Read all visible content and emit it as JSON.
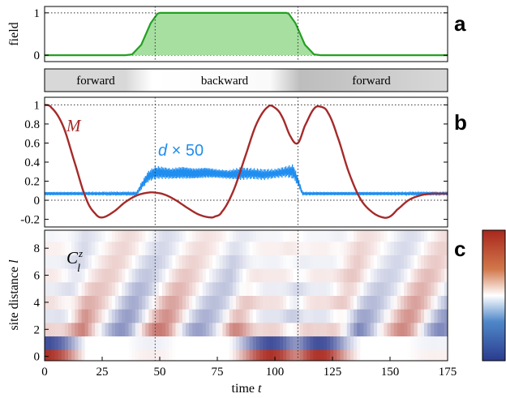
{
  "chart_data": [
    {
      "panel": "a",
      "type": "area",
      "ylabel": "field",
      "xlim": [
        0,
        175
      ],
      "ylim": [
        -0.15,
        1.15
      ],
      "yticks": [
        0,
        1
      ],
      "hlines": [
        0,
        1
      ],
      "series": [
        {
          "color": "#22a022",
          "fill": "#a6dfa0",
          "x": [
            0,
            35,
            38,
            42,
            46,
            49,
            50,
            105,
            106,
            109,
            113,
            117,
            120,
            175
          ],
          "values": [
            0,
            0,
            0.02,
            0.25,
            0.75,
            0.98,
            1,
            1,
            0.98,
            0.75,
            0.25,
            0.02,
            0,
            0
          ]
        }
      ]
    },
    {
      "panel": "band",
      "type": "table",
      "segments": [
        {
          "label": "forward",
          "start": 0,
          "end": 48
        },
        {
          "label": "backward",
          "start": 48,
          "end": 110
        },
        {
          "label": "forward",
          "start": 110,
          "end": 175
        }
      ]
    },
    {
      "panel": "b",
      "type": "line",
      "xlim": [
        0,
        175
      ],
      "ylim": [
        -0.28,
        1.08
      ],
      "yticks": [
        -0.2,
        0,
        0.2,
        0.4,
        0.6,
        0.8,
        1
      ],
      "ytick_labels": [
        "-0.2",
        "0",
        "0.2",
        "0.4",
        "0.6",
        "0.8",
        "1"
      ],
      "hlines": [
        0,
        1
      ],
      "series": [
        {
          "name": "M",
          "color": "#a52a2a",
          "x": [
            0,
            3,
            8,
            13,
            18,
            22,
            25,
            30,
            35,
            40,
            45,
            48,
            52,
            57,
            62,
            67,
            72,
            74,
            77,
            82,
            87,
            92,
            97,
            100,
            103,
            107,
            110,
            113,
            117,
            120,
            123,
            127,
            132,
            137,
            142,
            147,
            150,
            153,
            158,
            163,
            168,
            172,
            175
          ],
          "values": [
            1.0,
            0.97,
            0.78,
            0.4,
            0.02,
            -0.14,
            -0.18,
            -0.12,
            -0.02,
            0.05,
            0.08,
            0.08,
            0.06,
            0.0,
            -0.08,
            -0.15,
            -0.18,
            -0.17,
            -0.12,
            0.1,
            0.45,
            0.8,
            0.98,
            0.97,
            0.88,
            0.66,
            0.6,
            0.78,
            0.96,
            0.98,
            0.92,
            0.68,
            0.3,
            0.02,
            -0.12,
            -0.18,
            -0.17,
            -0.1,
            0.0,
            0.05,
            0.07,
            0.07,
            0.07
          ]
        },
        {
          "name": "d × 50",
          "color": "#1f8ef0",
          "envelope": {
            "x": [
              0,
              20,
              40,
              42,
              45,
              48,
              50,
              55,
              60,
              65,
              70,
              75,
              80,
              85,
              90,
              95,
              100,
              105,
              108,
              110,
              112,
              120,
              140,
              160,
              175
            ],
            "mid": [
              0.07,
              0.07,
              0.07,
              0.15,
              0.25,
              0.29,
              0.29,
              0.28,
              0.29,
              0.28,
              0.29,
              0.28,
              0.27,
              0.28,
              0.28,
              0.27,
              0.28,
              0.3,
              0.3,
              0.2,
              0.07,
              0.07,
              0.07,
              0.07,
              0.07
            ],
            "half": [
              0.02,
              0.02,
              0.02,
              0.04,
              0.06,
              0.07,
              0.07,
              0.06,
              0.07,
              0.06,
              0.06,
              0.05,
              0.05,
              0.07,
              0.06,
              0.06,
              0.05,
              0.06,
              0.08,
              0.05,
              0.02,
              0.02,
              0.02,
              0.02,
              0.02
            ]
          }
        }
      ]
    },
    {
      "panel": "c",
      "type": "heatmap",
      "xlabel_text": "time",
      "xlabel_var": "t",
      "ylabel_text": "site distance",
      "ylabel_var": "l",
      "xlim": [
        0,
        175
      ],
      "xticks": [
        0,
        25,
        50,
        75,
        100,
        125,
        150,
        175
      ],
      "yticks": [
        0,
        2,
        4,
        6,
        8
      ],
      "rows": 10,
      "colormap": [
        "#2b3b8f",
        "#ffffff",
        "#a8271c"
      ],
      "colorbar": true
    }
  ],
  "labels": {
    "panel_a": "a",
    "panel_b": "b",
    "panel_c": "c",
    "M": "M",
    "d_var": "d",
    "d_suffix": " × 50",
    "C_main": "C",
    "C_sup": "z",
    "C_sub": "l"
  }
}
